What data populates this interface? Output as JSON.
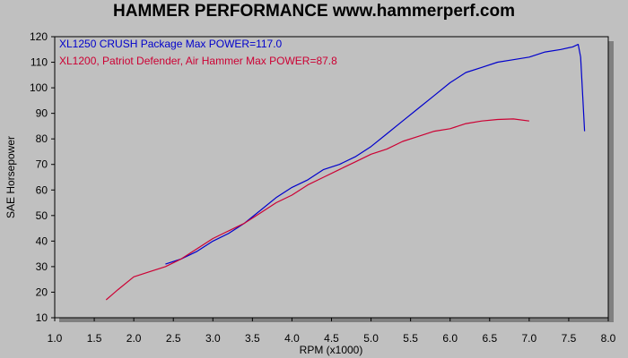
{
  "chart_data": {
    "type": "line",
    "title": "HAMMER PERFORMANCE www.hammerperf.com",
    "xlabel": "RPM (x1000)",
    "ylabel": "SAE Horsepower",
    "xlim": [
      1.0,
      8.0
    ],
    "ylim": [
      10,
      120
    ],
    "xticks": [
      "1.0",
      "1.5",
      "2.0",
      "2.5",
      "3.0",
      "3.5",
      "4.0",
      "4.5",
      "5.0",
      "5.5",
      "6.0",
      "6.5",
      "7.0",
      "7.5",
      "8.0"
    ],
    "yticks": [
      "10",
      "20",
      "30",
      "40",
      "50",
      "60",
      "70",
      "80",
      "90",
      "100",
      "110",
      "120"
    ],
    "grid": false,
    "legend": "top-left",
    "series": [
      {
        "name": "XL1250 CRUSH Package  Max POWER=117.0",
        "color": "#0000cc",
        "x": [
          2.4,
          2.6,
          2.8,
          3.0,
          3.2,
          3.4,
          3.6,
          3.8,
          4.0,
          4.2,
          4.4,
          4.6,
          4.8,
          5.0,
          5.2,
          5.4,
          5.6,
          5.8,
          6.0,
          6.2,
          6.4,
          6.6,
          6.8,
          7.0,
          7.2,
          7.4,
          7.55,
          7.62,
          7.65,
          7.68,
          7.7
        ],
        "y": [
          31,
          33,
          36,
          40,
          43,
          47,
          52,
          57,
          61,
          64,
          68,
          70,
          73,
          77,
          82,
          87,
          92,
          97,
          102,
          106,
          108,
          110,
          111,
          112,
          114,
          115,
          116,
          117,
          112,
          95,
          83
        ]
      },
      {
        "name": "XL1200, Patriot Defender, Air Hammer  Max POWER=87.8",
        "color": "#cc0033",
        "x": [
          1.65,
          1.8,
          2.0,
          2.2,
          2.4,
          2.6,
          2.8,
          3.0,
          3.2,
          3.4,
          3.6,
          3.8,
          4.0,
          4.2,
          4.4,
          4.6,
          4.8,
          5.0,
          5.2,
          5.4,
          5.6,
          5.8,
          6.0,
          6.2,
          6.4,
          6.6,
          6.8,
          7.0
        ],
        "y": [
          17,
          21,
          26,
          28,
          30,
          33,
          37,
          41,
          44,
          47,
          51,
          55,
          58,
          62,
          65,
          68,
          71,
          74,
          76,
          79,
          81,
          83,
          84,
          86,
          87,
          87.6,
          87.8,
          87
        ]
      }
    ]
  }
}
